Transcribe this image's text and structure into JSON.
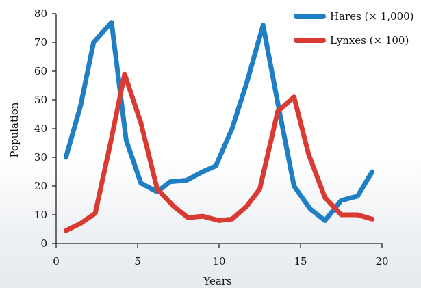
{
  "chart_data": {
    "type": "line",
    "xlabel": "Years",
    "ylabel": "Population",
    "xlim": [
      0,
      20
    ],
    "ylim": [
      0,
      80
    ],
    "x_ticks": [
      0,
      5,
      10,
      15,
      20
    ],
    "y_ticks": [
      0,
      10,
      20,
      30,
      40,
      50,
      60,
      70,
      80
    ],
    "grid": false,
    "legend_position": "top-right",
    "series": [
      {
        "name": "Hares (× 1,000)",
        "color": "#1f7fc4",
        "x": [
          0.6,
          1.5,
          2.3,
          3.4,
          4.3,
          5.2,
          6.2,
          7.0,
          8.0,
          9.0,
          9.8,
          10.8,
          11.7,
          12.7,
          13.6,
          14.6,
          15.6,
          16.5,
          17.5,
          18.5,
          19.4
        ],
        "y": [
          30,
          48,
          70,
          77,
          36,
          21,
          18,
          21.5,
          22,
          25,
          27,
          40,
          56,
          76,
          49,
          20,
          12,
          8,
          15,
          16.5,
          25
        ]
      },
      {
        "name": "Lynxes (× 100)",
        "color": "#d93b33",
        "x": [
          0.6,
          1.5,
          2.4,
          3.3,
          4.2,
          5.2,
          6.2,
          7.2,
          8.1,
          9.0,
          10.0,
          10.8,
          11.7,
          12.5,
          13.6,
          14.6,
          15.5,
          16.5,
          17.5,
          18.5,
          19.4
        ],
        "y": [
          4.5,
          7,
          10.5,
          34,
          59,
          42,
          19,
          13,
          9,
          9.5,
          8,
          8.5,
          13,
          19,
          46,
          51,
          31,
          16,
          10,
          10,
          8.5
        ]
      }
    ]
  }
}
